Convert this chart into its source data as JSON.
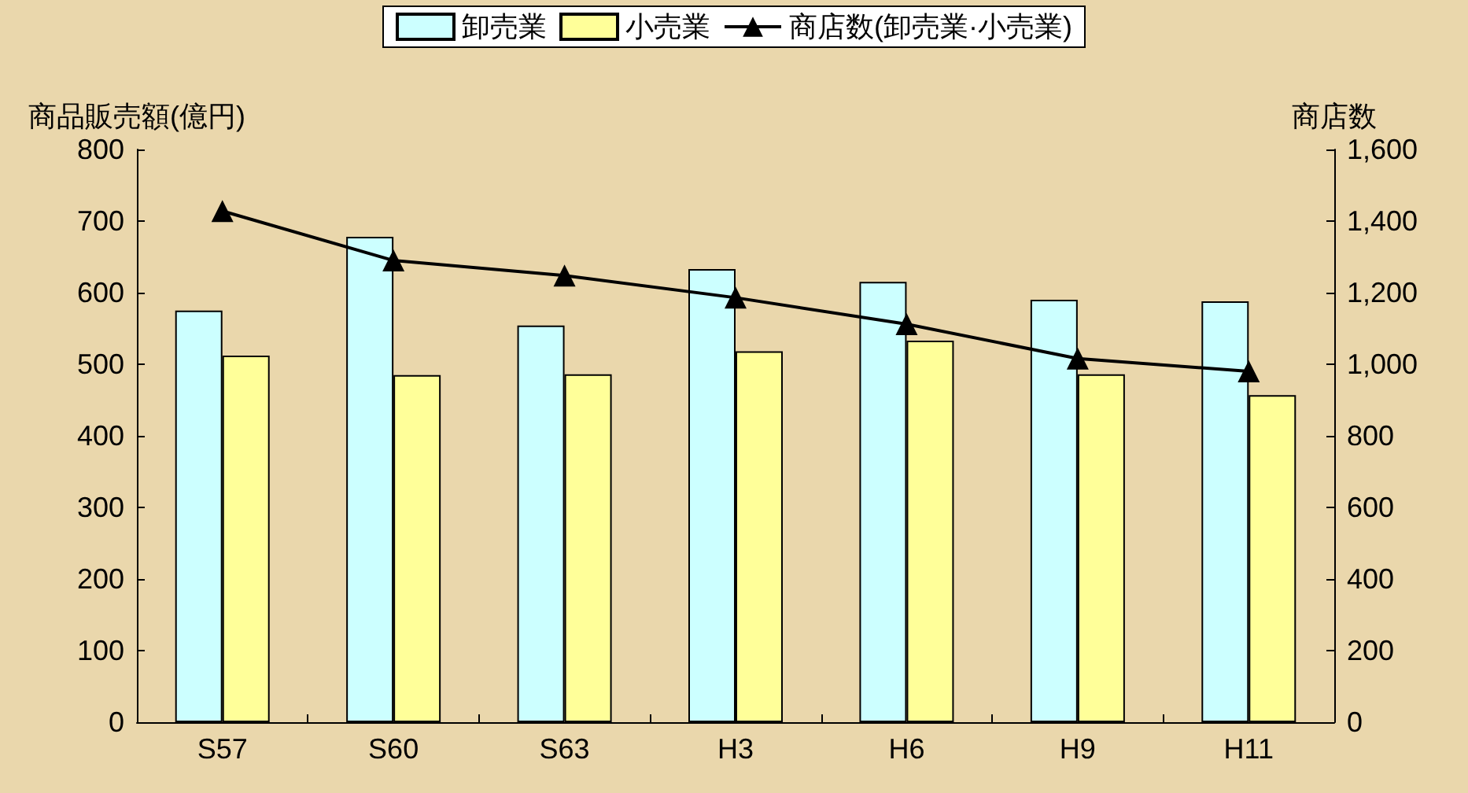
{
  "chart_data": {
    "type": "bar",
    "ylabel": "商品販売額(億円)",
    "y2label": "商店数",
    "categories": [
      "S57",
      "S60",
      "S63",
      "H3",
      "H6",
      "H9",
      "H11"
    ],
    "series": [
      {
        "name": "卸売業",
        "color": "#ccffff",
        "values": [
          575,
          678,
          554,
          633,
          615,
          590,
          588
        ]
      },
      {
        "name": "小売業",
        "color": "#ffff99",
        "values": [
          512,
          485,
          486,
          518,
          533,
          486,
          457
        ]
      },
      {
        "name": "商店数(卸売業·小売業)",
        "type": "line",
        "axis": "y2",
        "color": "#000000",
        "marker": "triangle",
        "values": [
          1428,
          1290,
          1248,
          1186,
          1112,
          1016,
          980
        ]
      }
    ],
    "ylim": [
      0,
      800
    ],
    "yticks": [
      0,
      100,
      200,
      300,
      400,
      500,
      600,
      700,
      800
    ],
    "y2lim": [
      0,
      1600
    ],
    "y2ticks": [
      0,
      200,
      400,
      600,
      800,
      {
        "value": 1000,
        "label": "1,000"
      },
      {
        "value": 1200,
        "label": "1,200"
      },
      {
        "value": 1400,
        "label": "1,400"
      },
      {
        "value": 1600,
        "label": "1,600"
      }
    ],
    "grid": false,
    "legend": "top"
  }
}
